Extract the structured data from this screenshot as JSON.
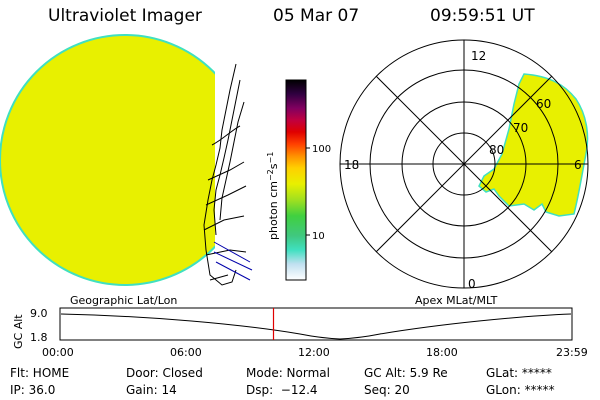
{
  "header": {
    "instrument": "Ultraviolet Imager",
    "date": "05 Mar 07",
    "time": "09:59:51 UT"
  },
  "colorbar": {
    "unit": "photon cm",
    "unit_exp1": "−2",
    "unit_s": "s",
    "unit_exp2": "−1",
    "tick_100": "100",
    "tick_10": "10"
  },
  "polar": {
    "label_12": "12",
    "label_18": "18",
    "label_6": "6",
    "label_0": "0",
    "lat_60": "60",
    "lat_70": "70",
    "lat_80": "80"
  },
  "projections": {
    "left": "Geographic Lat/Lon",
    "right": "Apex MLat/MLT"
  },
  "timeline": {
    "ylabel": "GC Alt",
    "y_top": "9.0",
    "y_bottom": "1.8",
    "ticks": [
      "00:00",
      "06:00",
      "12:00",
      "18:00",
      "23:59"
    ],
    "current_time_hours": 10.0
  },
  "status": {
    "flt": "Flt: HOME",
    "ip": "IP: 36.0",
    "door": "Door: Closed",
    "gain": "Gain: 14",
    "mode": "Mode: Normal",
    "dsp": "Dsp:  −12.4",
    "gcalt": "GC Alt: 5.9 Re",
    "seq": "Seq: 20",
    "glat": "GLat: *****",
    "glon": "GLon: *****"
  },
  "colors": {
    "image_fill": "#e8f000",
    "image_edge": "#40e0c0",
    "marker": "#e00000"
  }
}
